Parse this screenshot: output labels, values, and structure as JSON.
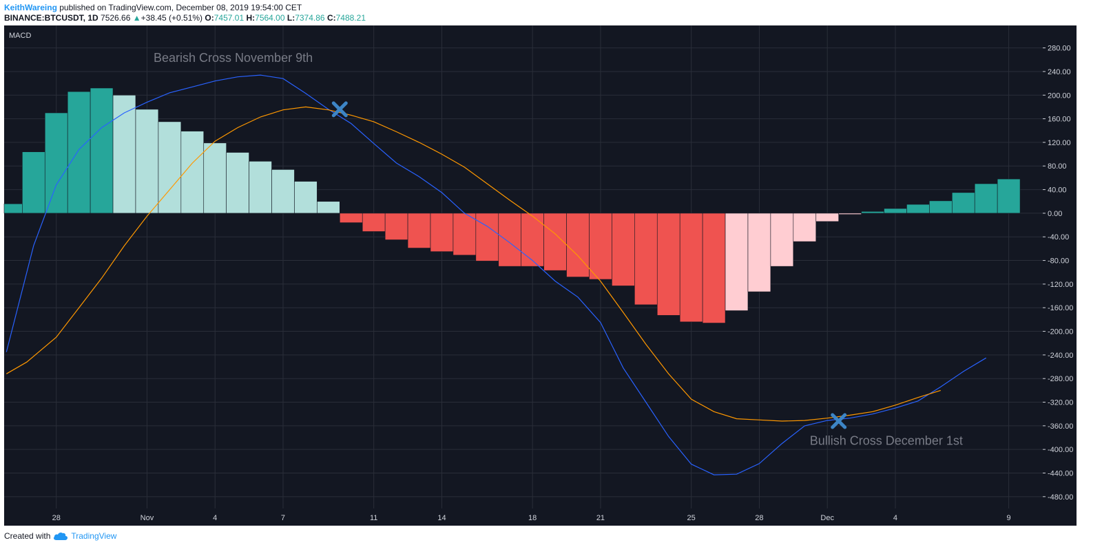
{
  "header": {
    "author": "KeithWareing",
    "published": "published on TradingView.com, December 08, 2019 19:54:00 CET",
    "symbol": "BINANCE:BTCUSDT, 1D",
    "price": "7526.66",
    "arrow": "▲",
    "change": "+38.45 (+0.51%)",
    "o_label": "O:",
    "o_value": "7457.01",
    "h_label": "H:",
    "h_value": "7564.00",
    "l_label": "L:",
    "l_value": "7374.86",
    "c_label": "C:",
    "c_value": "7488.21"
  },
  "footer": {
    "created_with": "Created with",
    "brand": "TradingView",
    "logo_icon": "tradingview-cloud-icon"
  },
  "colors": {
    "background": "#131722",
    "grid": "#2a2e39",
    "macd_line": "#2962ff",
    "signal_line": "#ff9800",
    "hist_pos_strong": "#26a69a",
    "hist_pos_weak": "#b2dfdb",
    "hist_neg_strong": "#ef5350",
    "hist_neg_weak": "#ffcdd2",
    "annotation_text": "#787b86",
    "cross_marker": "#3d85c6"
  },
  "chart_data": {
    "type": "bar",
    "indicator_label": "MACD",
    "grid": true,
    "x_ticks": [
      {
        "label": "28",
        "index": 2
      },
      {
        "label": "Nov",
        "index": 6
      },
      {
        "label": "4",
        "index": 9
      },
      {
        "label": "7",
        "index": 12
      },
      {
        "label": "11",
        "index": 16
      },
      {
        "label": "14",
        "index": 19
      },
      {
        "label": "18",
        "index": 23
      },
      {
        "label": "21",
        "index": 26
      },
      {
        "label": "25",
        "index": 30
      },
      {
        "label": "28",
        "index": 33
      },
      {
        "label": "Dec",
        "index": 36
      },
      {
        "label": "4",
        "index": 39
      },
      {
        "label": "9",
        "index": 44
      }
    ],
    "y_ticks": [
      280,
      240,
      200,
      160,
      120,
      80,
      40,
      0,
      -40,
      -80,
      -120,
      -160,
      -200,
      -240,
      -280,
      -320,
      -360,
      -400,
      -440,
      -480
    ],
    "ylim": [
      -500,
      318
    ],
    "x_range": [
      -0.3,
      45.5
    ],
    "histogram": [
      16,
      104,
      170,
      206,
      212,
      200,
      176,
      155,
      139,
      119,
      103,
      88,
      74,
      54,
      20,
      -16,
      -31,
      -45,
      -59,
      -65,
      -71,
      -81,
      -90,
      -90,
      -97,
      -108,
      -112,
      -123,
      -155,
      -173,
      -184,
      -186,
      -165,
      -133,
      -90,
      -48,
      -14,
      -2,
      3,
      8,
      15,
      21,
      35,
      50,
      58
    ],
    "series": [
      {
        "id": "macd",
        "points": [
          [
            -0.2,
            -235
          ],
          [
            1,
            -55
          ],
          [
            2,
            48
          ],
          [
            3,
            108
          ],
          [
            4,
            145
          ],
          [
            5,
            170
          ],
          [
            6,
            188
          ],
          [
            7,
            204
          ],
          [
            8,
            214
          ],
          [
            9,
            224
          ],
          [
            10,
            231
          ],
          [
            11,
            234
          ],
          [
            12,
            228
          ],
          [
            13,
            203
          ],
          [
            14,
            176
          ],
          [
            15,
            152
          ],
          [
            16,
            118
          ],
          [
            17,
            85
          ],
          [
            18,
            62
          ],
          [
            19,
            35
          ],
          [
            20,
            0
          ],
          [
            21,
            -22
          ],
          [
            22,
            -50
          ],
          [
            23,
            -80
          ],
          [
            24,
            -115
          ],
          [
            25,
            -142
          ],
          [
            26,
            -185
          ],
          [
            27,
            -262
          ],
          [
            28,
            -320
          ],
          [
            29,
            -378
          ],
          [
            30,
            -425
          ],
          [
            31,
            -443
          ],
          [
            32,
            -442
          ],
          [
            33,
            -424
          ],
          [
            34,
            -390
          ],
          [
            35,
            -360
          ],
          [
            36,
            -351
          ],
          [
            37,
            -347
          ],
          [
            38,
            -340
          ],
          [
            39,
            -330
          ],
          [
            40,
            -318
          ],
          [
            41,
            -294
          ],
          [
            42,
            -268
          ],
          [
            43,
            -245
          ]
        ]
      },
      {
        "id": "signal",
        "points": [
          [
            -0.2,
            -272
          ],
          [
            0.7,
            -252
          ],
          [
            2,
            -210
          ],
          [
            3,
            -160
          ],
          [
            4,
            -110
          ],
          [
            5,
            -55
          ],
          [
            6,
            -5
          ],
          [
            7,
            40
          ],
          [
            8,
            85
          ],
          [
            9,
            122
          ],
          [
            10,
            145
          ],
          [
            11,
            163
          ],
          [
            12,
            175
          ],
          [
            13,
            180
          ],
          [
            14,
            175
          ],
          [
            15,
            166
          ],
          [
            16,
            155
          ],
          [
            17,
            138
          ],
          [
            18,
            120
          ],
          [
            19,
            100
          ],
          [
            20,
            78
          ],
          [
            21,
            50
          ],
          [
            22,
            22
          ],
          [
            23,
            -5
          ],
          [
            24,
            -35
          ],
          [
            25,
            -72
          ],
          [
            26,
            -115
          ],
          [
            27,
            -168
          ],
          [
            28,
            -222
          ],
          [
            29,
            -272
          ],
          [
            30,
            -315
          ],
          [
            31,
            -336
          ],
          [
            32,
            -348
          ],
          [
            33,
            -350
          ],
          [
            34,
            -352
          ],
          [
            35,
            -351
          ],
          [
            36,
            -347
          ],
          [
            37,
            -342
          ],
          [
            38,
            -336
          ],
          [
            39,
            -325
          ],
          [
            40,
            -312
          ],
          [
            41,
            -300
          ]
        ]
      }
    ],
    "annotations": [
      {
        "text": "Bearish Cross November 9th",
        "x": 9.8,
        "y": 256
      },
      {
        "text": "Bullish Cross December 1st",
        "x": 38.6,
        "y": -392
      }
    ],
    "cross_markers": [
      {
        "name": "bearish-cross-marker",
        "x": 14.5,
        "y": 176
      },
      {
        "name": "bullish-cross-marker",
        "x": 36.5,
        "y": -352
      }
    ]
  }
}
